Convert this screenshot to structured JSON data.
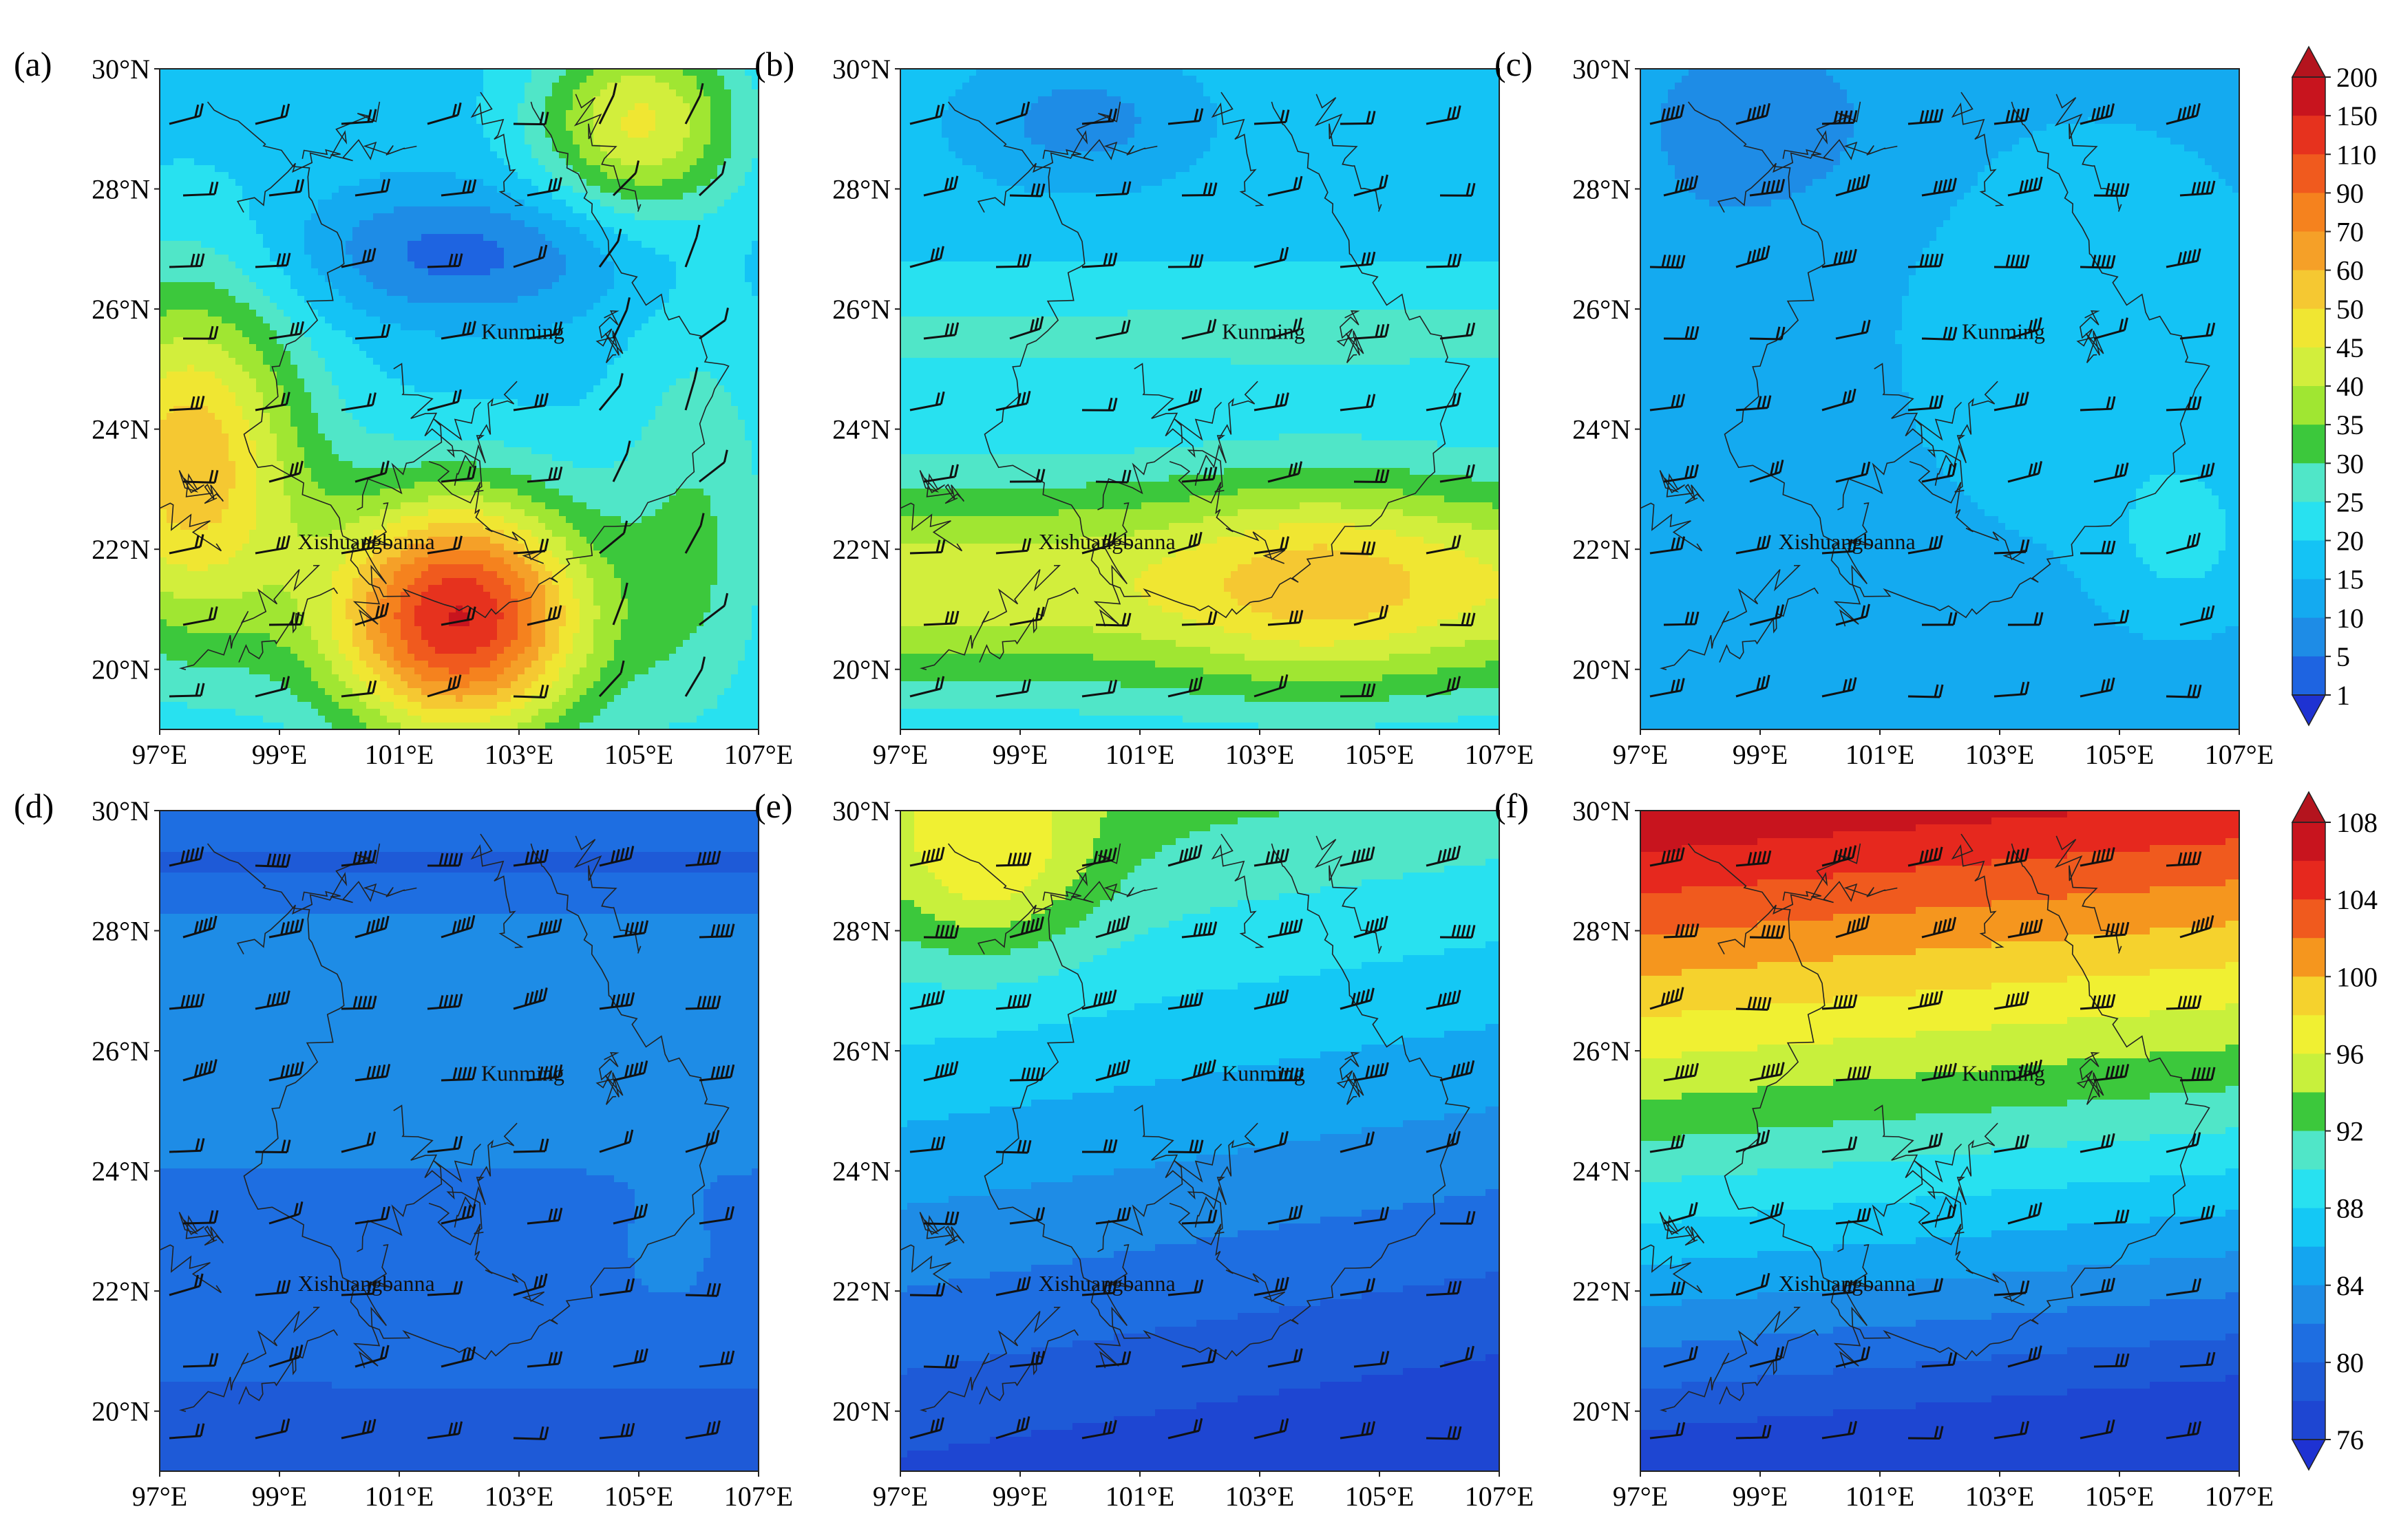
{
  "figure": {
    "x_ticks": [
      "97°E",
      "99°E",
      "101°E",
      "103°E",
      "105°E",
      "107°E"
    ],
    "y_ticks": [
      "30°N",
      "28°N",
      "26°N",
      "24°N",
      "22°N",
      "20°N"
    ],
    "city_labels": [
      "Kunming",
      "Xishuangbanna"
    ],
    "panels": [
      {
        "label": "(a)",
        "scheme": "top",
        "pattern": "a"
      },
      {
        "label": "(b)",
        "scheme": "top",
        "pattern": "b"
      },
      {
        "label": "(c)",
        "scheme": "top",
        "pattern": "c"
      },
      {
        "label": "(d)",
        "scheme": "bottom",
        "pattern": "d"
      },
      {
        "label": "(e)",
        "scheme": "bottom",
        "pattern": "e"
      },
      {
        "label": "(f)",
        "scheme": "bottom",
        "pattern": "f"
      }
    ],
    "colorbars": [
      {
        "row": "top",
        "ticks": [
          "200",
          "150",
          "110",
          "90",
          "70",
          "60",
          "50",
          "45",
          "40",
          "35",
          "30",
          "25",
          "20",
          "15",
          "10",
          "5",
          "1"
        ],
        "colors": [
          "#c8141e",
          "#e6321e",
          "#f05a1e",
          "#f5821e",
          "#f5a028",
          "#f5c832",
          "#f0e632",
          "#d2ee3c",
          "#a0e632",
          "#3cc83c",
          "#50e6c8",
          "#28e1f0",
          "#14c3f5",
          "#14aaf0",
          "#1e8ce6",
          "#1e64e1"
        ],
        "arrow_top_color": "#b4141e",
        "arrow_bottom_color": "#1e32d2"
      },
      {
        "row": "bottom",
        "ticks": [
          "108",
          "104",
          "100",
          "96",
          "92",
          "88",
          "84",
          "80",
          "76"
        ],
        "colors": [
          "#c8141e",
          "#e6281e",
          "#f05a1e",
          "#f5961e",
          "#f5d22d",
          "#f0f032",
          "#c8f03c",
          "#3cc83c",
          "#50e6c8",
          "#28e1f0",
          "#14c8f5",
          "#14a5f0",
          "#1e8ce6",
          "#1e6ee1",
          "#1e5ad7",
          "#1e46d2"
        ],
        "arrow_top_color": "#b4141e",
        "arrow_bottom_color": "#1e32d2"
      }
    ]
  }
}
